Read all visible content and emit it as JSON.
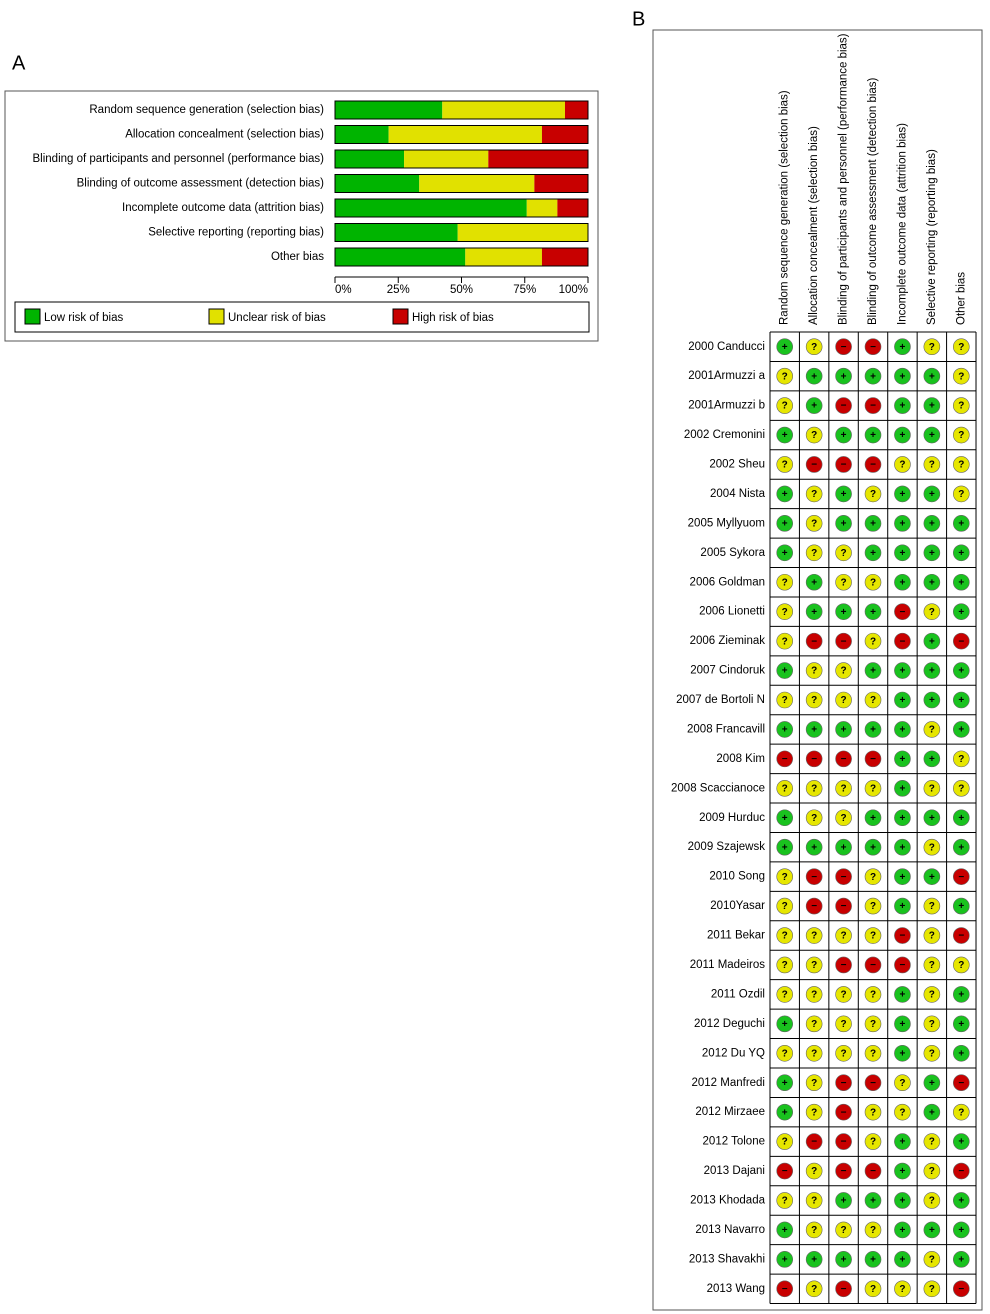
{
  "chart_data": [
    {
      "type": "bar",
      "orientation": "horizontal",
      "stacked": true,
      "panel_label": "A",
      "categories": [
        "Random sequence generation (selection bias)",
        "Allocation concealment (selection bias)",
        "Blinding of participants and personnel (performance bias)",
        "Blinding of outcome assessment (detection bias)",
        "Incomplete outcome data (attrition bias)",
        "Selective reporting (reporting bias)",
        "Other bias"
      ],
      "series": [
        {
          "name": "Low risk of bias",
          "color": "#00b400",
          "values": [
            42.4,
            21.2,
            27.3,
            33.3,
            75.8,
            48.5,
            51.5
          ]
        },
        {
          "name": "Unclear risk of bias",
          "color": "#e1e100",
          "values": [
            48.5,
            60.6,
            33.3,
            45.5,
            12.1,
            51.5,
            30.3
          ]
        },
        {
          "name": "High risk of bias",
          "color": "#c80000",
          "values": [
            9.1,
            18.2,
            39.4,
            21.2,
            12.1,
            0,
            18.2
          ]
        }
      ],
      "xlim": [
        0,
        100
      ],
      "xticks": [
        {
          "value": 0,
          "label": "0%"
        },
        {
          "value": 25,
          "label": "25%"
        },
        {
          "value": 50,
          "label": "50%"
        },
        {
          "value": 75,
          "label": "75%"
        },
        {
          "value": 100,
          "label": "100%"
        }
      ],
      "legend": "bottom"
    },
    {
      "type": "matrix",
      "panel_label": "B",
      "columns": [
        "Random sequence generation (selection bias)",
        "Allocation concealment (selection bias)",
        "Blinding of participants and personnel (performance bias)",
        "Blinding of outcome assessment (detection bias)",
        "Incomplete outcome data (attrition bias)",
        "Selective reporting (reporting bias)",
        "Other bias"
      ],
      "rows": [
        "2000 Canducci",
        "2001Armuzzi a",
        "2001Armuzzi b",
        "2002 Cremonini",
        "2002 Sheu",
        "2004 Nista",
        "2005 Myllyuom",
        "2005 Sykora",
        "2006 Goldman",
        "2006 Lionetti",
        "2006 Zieminak",
        "2007 Cindoruk",
        "2007 de Bortoli N",
        "2008 Francavill",
        "2008 Kim",
        "2008 Scaccianoce",
        "2009 Hurduc",
        "2009 Szajewsk",
        "2010 Song",
        "2010Yasar",
        "2011 Bekar",
        "2011 Madeiros",
        "2011 Ozdil",
        "2012 Deguchi",
        "2012 Du YQ",
        "2012 Manfredi",
        "2012 Mirzaee",
        "2012 Tolone",
        "2013 Dajani",
        "2013 Khodada",
        "2013 Navarro",
        "2013 Shavakhi",
        "2013 Wang"
      ],
      "values": [
        [
          "+",
          "?",
          "−",
          "−",
          "+",
          "?",
          "?"
        ],
        [
          "?",
          "+",
          "+",
          "+",
          "+",
          "+",
          "?"
        ],
        [
          "?",
          "+",
          "−",
          "−",
          "+",
          "+",
          "?"
        ],
        [
          "+",
          "?",
          "+",
          "+",
          "+",
          "+",
          "?"
        ],
        [
          "?",
          "−",
          "−",
          "−",
          "?",
          "?",
          "?"
        ],
        [
          "+",
          "?",
          "+",
          "?",
          "+",
          "+",
          "?"
        ],
        [
          "+",
          "?",
          "+",
          "+",
          "+",
          "+",
          "+"
        ],
        [
          "+",
          "?",
          "?",
          "+",
          "+",
          "+",
          "+"
        ],
        [
          "?",
          "+",
          "?",
          "?",
          "+",
          "+",
          "+"
        ],
        [
          "?",
          "+",
          "+",
          "+",
          "−",
          "?",
          "+"
        ],
        [
          "?",
          "−",
          "−",
          "?",
          "−",
          "+",
          "−"
        ],
        [
          "+",
          "?",
          "?",
          "+",
          "+",
          "+",
          "+"
        ],
        [
          "?",
          "?",
          "?",
          "?",
          "+",
          "+",
          "+"
        ],
        [
          "+",
          "+",
          "+",
          "+",
          "+",
          "?",
          "+"
        ],
        [
          "−",
          "−",
          "−",
          "−",
          "+",
          "+",
          "?"
        ],
        [
          "?",
          "?",
          "?",
          "?",
          "+",
          "?",
          "?"
        ],
        [
          "+",
          "?",
          "?",
          "+",
          "+",
          "+",
          "+"
        ],
        [
          "+",
          "+",
          "+",
          "+",
          "+",
          "?",
          "+"
        ],
        [
          "?",
          "−",
          "−",
          "?",
          "+",
          "+",
          "−"
        ],
        [
          "?",
          "−",
          "−",
          "?",
          "+",
          "?",
          "+"
        ],
        [
          "?",
          "?",
          "?",
          "?",
          "−",
          "?",
          "−"
        ],
        [
          "?",
          "?",
          "−",
          "−",
          "−",
          "?",
          "?"
        ],
        [
          "?",
          "?",
          "?",
          "?",
          "+",
          "?",
          "+"
        ],
        [
          "+",
          "?",
          "?",
          "?",
          "+",
          "?",
          "+"
        ],
        [
          "?",
          "?",
          "?",
          "?",
          "+",
          "?",
          "+"
        ],
        [
          "+",
          "?",
          "−",
          "−",
          "?",
          "+",
          "−"
        ],
        [
          "+",
          "?",
          "−",
          "?",
          "?",
          "+",
          "?"
        ],
        [
          "?",
          "−",
          "−",
          "?",
          "+",
          "?",
          "+"
        ],
        [
          "−",
          "?",
          "−",
          "−",
          "+",
          "?",
          "−"
        ],
        [
          "?",
          "?",
          "+",
          "+",
          "+",
          "?",
          "+"
        ],
        [
          "+",
          "?",
          "?",
          "?",
          "+",
          "+",
          "+"
        ],
        [
          "+",
          "+",
          "+",
          "+",
          "+",
          "?",
          "+"
        ],
        [
          "−",
          "?",
          "−",
          "?",
          "?",
          "?",
          "−"
        ]
      ],
      "symbol_colors": {
        "+": "#19c21e",
        "?": "#e6e600",
        "−": "#c80000"
      }
    }
  ]
}
